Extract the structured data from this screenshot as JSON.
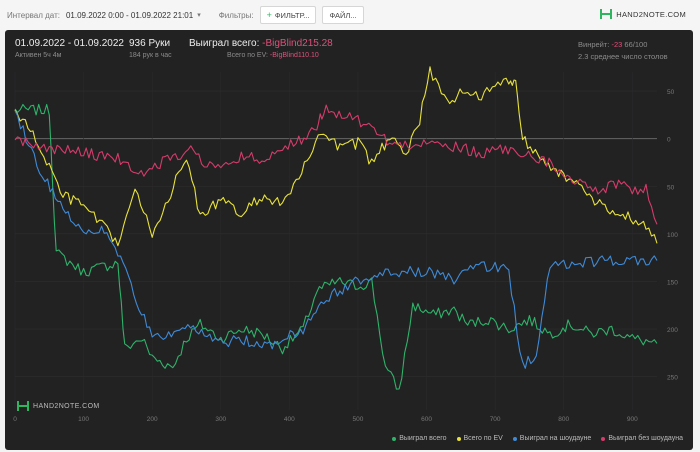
{
  "toolbar": {
    "interval_label": "Интервал дат:",
    "interval_value": "01.09.2022 0:00 - 01.09.2022 21:01",
    "filters_label": "Фильтры:",
    "filter_button": "ФИЛЬТР...",
    "file_button": "ФАЙЛ..."
  },
  "brand": {
    "name": "HAND2NOTE.COM"
  },
  "summary": {
    "date_range": "01.09.2022 - 01.09.2022",
    "active": "Активен 5ч 4м",
    "hands": "936 Руки",
    "hands_per_hour": "184 рук в час",
    "won_total_label": "Выиграл всего:",
    "won_total_value": "-BigBlind215.28",
    "ev_total_label": "Всего по EV:",
    "ev_total_value": "-BigBlind110.10",
    "winrate_label": "Винрейт:",
    "winrate_value": "-23",
    "winrate_rest": "66/100",
    "tables_avg": "2.3 среднее число столов"
  },
  "watermark": "HAND2NOTE.COM",
  "chart_data": {
    "type": "line",
    "x_ticks": [
      0,
      100,
      200,
      300,
      400,
      500,
      600,
      700,
      800,
      900
    ],
    "y_ticks": [
      50,
      0,
      -50,
      -100,
      -150,
      -200,
      -250
    ],
    "y_tick_labels": [
      "50",
      "0",
      "50",
      "100",
      "150",
      "200",
      "250"
    ],
    "xlim": [
      0,
      936
    ],
    "ylim": [
      -285,
      70
    ],
    "legend_position": "bottom-right",
    "series": [
      {
        "name": "Выиграл всего",
        "color": "#2fb36a",
        "points": [
          [
            0,
            30
          ],
          [
            50,
            30
          ],
          [
            60,
            -120
          ],
          [
            100,
            -140
          ],
          [
            150,
            -130
          ],
          [
            160,
            -220
          ],
          [
            185,
            -210
          ],
          [
            200,
            -230
          ],
          [
            230,
            -240
          ],
          [
            250,
            -210
          ],
          [
            270,
            -195
          ],
          [
            300,
            -210
          ],
          [
            330,
            -200
          ],
          [
            360,
            -205
          ],
          [
            390,
            -220
          ],
          [
            420,
            -200
          ],
          [
            440,
            -160
          ],
          [
            470,
            -150
          ],
          [
            500,
            -155
          ],
          [
            520,
            -150
          ],
          [
            540,
            -240
          ],
          [
            560,
            -265
          ],
          [
            580,
            -175
          ],
          [
            610,
            -185
          ],
          [
            640,
            -180
          ],
          [
            660,
            -195
          ],
          [
            690,
            -190
          ],
          [
            720,
            -200
          ],
          [
            750,
            -190
          ],
          [
            780,
            -205
          ],
          [
            810,
            -195
          ],
          [
            840,
            -205
          ],
          [
            870,
            -200
          ],
          [
            900,
            -210
          ],
          [
            936,
            -215
          ]
        ]
      },
      {
        "name": "Всего по EV",
        "color": "#e8e23a",
        "points": [
          [
            0,
            30
          ],
          [
            30,
            0
          ],
          [
            70,
            -60
          ],
          [
            100,
            -70
          ],
          [
            150,
            -110
          ],
          [
            175,
            -55
          ],
          [
            200,
            -100
          ],
          [
            250,
            -20
          ],
          [
            270,
            -80
          ],
          [
            300,
            -65
          ],
          [
            330,
            -80
          ],
          [
            360,
            -60
          ],
          [
            390,
            -70
          ],
          [
            430,
            -20
          ],
          [
            450,
            10
          ],
          [
            470,
            -10
          ],
          [
            500,
            -5
          ],
          [
            520,
            -25
          ],
          [
            550,
            5
          ],
          [
            570,
            -15
          ],
          [
            590,
            20
          ],
          [
            605,
            70
          ],
          [
            630,
            40
          ],
          [
            660,
            50
          ],
          [
            680,
            45
          ],
          [
            700,
            55
          ],
          [
            720,
            62
          ],
          [
            730,
            60
          ],
          [
            740,
            0
          ],
          [
            770,
            -20
          ],
          [
            800,
            -40
          ],
          [
            830,
            -55
          ],
          [
            860,
            -75
          ],
          [
            890,
            -80
          ],
          [
            920,
            -90
          ],
          [
            936,
            -110
          ]
        ]
      },
      {
        "name": "Выиграл на шоудауне",
        "color": "#3f8ad6",
        "points": [
          [
            0,
            30
          ],
          [
            40,
            -40
          ],
          [
            70,
            -70
          ],
          [
            100,
            -100
          ],
          [
            130,
            -95
          ],
          [
            150,
            -120
          ],
          [
            200,
            -210
          ],
          [
            260,
            -200
          ],
          [
            300,
            -215
          ],
          [
            330,
            -210
          ],
          [
            360,
            -220
          ],
          [
            390,
            -210
          ],
          [
            420,
            -200
          ],
          [
            450,
            -170
          ],
          [
            470,
            -160
          ],
          [
            500,
            -150
          ],
          [
            520,
            -145
          ],
          [
            560,
            -140
          ],
          [
            600,
            -140
          ],
          [
            620,
            -145
          ],
          [
            640,
            -148
          ],
          [
            660,
            -135
          ],
          [
            700,
            -135
          ],
          [
            720,
            -140
          ],
          [
            740,
            -240
          ],
          [
            760,
            -225
          ],
          [
            780,
            -135
          ],
          [
            820,
            -130
          ],
          [
            860,
            -128
          ],
          [
            900,
            -128
          ],
          [
            936,
            -128
          ]
        ]
      },
      {
        "name": "Выиграл без шоудауна",
        "color": "#d63b6b",
        "points": [
          [
            0,
            0
          ],
          [
            50,
            -10
          ],
          [
            100,
            -15
          ],
          [
            150,
            -20
          ],
          [
            180,
            -40
          ],
          [
            200,
            -30
          ],
          [
            230,
            -20
          ],
          [
            260,
            -10
          ],
          [
            280,
            -30
          ],
          [
            300,
            -25
          ],
          [
            330,
            -20
          ],
          [
            360,
            -20
          ],
          [
            390,
            -10
          ],
          [
            410,
            -5
          ],
          [
            440,
            15
          ],
          [
            450,
            30
          ],
          [
            480,
            25
          ],
          [
            500,
            20
          ],
          [
            520,
            10
          ],
          [
            550,
            -5
          ],
          [
            580,
            -10
          ],
          [
            600,
            0
          ],
          [
            620,
            -5
          ],
          [
            650,
            -10
          ],
          [
            680,
            -15
          ],
          [
            700,
            -10
          ],
          [
            730,
            -15
          ],
          [
            760,
            -20
          ],
          [
            790,
            -30
          ],
          [
            820,
            -45
          ],
          [
            850,
            -55
          ],
          [
            880,
            -45
          ],
          [
            900,
            -55
          ],
          [
            920,
            -50
          ],
          [
            936,
            -90
          ]
        ]
      }
    ]
  }
}
